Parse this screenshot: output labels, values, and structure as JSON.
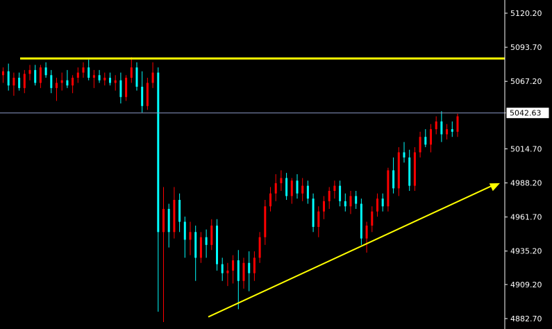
{
  "chart_data": {
    "type": "candlestick",
    "y_axis": {
      "position": "right",
      "ticks": [
        "5120.20",
        "5093.70",
        "5067.20",
        "5042.63",
        "5014.70",
        "4988.20",
        "4961.70",
        "4935.20",
        "4909.20",
        "4882.70"
      ],
      "ylim": [
        4876,
        5128
      ]
    },
    "current_price": {
      "label": "5042.63",
      "value": 5042.63
    },
    "annotations": {
      "resistance_line": {
        "price": 5085,
        "color": "#ffff00"
      },
      "trend_arrow": {
        "from_price": 4884,
        "to_price": 4988,
        "color": "#ffff00"
      }
    },
    "colors": {
      "background": "#000000",
      "bull": "#ff0000",
      "bear": "#00ffff",
      "axis": "#ffffff",
      "price_line": "#8c9ac8"
    },
    "candles": [
      [
        5072,
        5078,
        5066,
        5075
      ],
      [
        5075,
        5081,
        5060,
        5064
      ],
      [
        5064,
        5074,
        5056,
        5070
      ],
      [
        5070,
        5074,
        5060,
        5062
      ],
      [
        5062,
        5076,
        5058,
        5073
      ],
      [
        5073,
        5080,
        5068,
        5076
      ],
      [
        5076,
        5080,
        5064,
        5066
      ],
      [
        5066,
        5080,
        5062,
        5078
      ],
      [
        5078,
        5082,
        5070,
        5072
      ],
      [
        5072,
        5076,
        5058,
        5062
      ],
      [
        5062,
        5070,
        5052,
        5066
      ],
      [
        5066,
        5074,
        5060,
        5068
      ],
      [
        5068,
        5076,
        5062,
        5064
      ],
      [
        5064,
        5072,
        5058,
        5070
      ],
      [
        5070,
        5078,
        5066,
        5074
      ],
      [
        5074,
        5082,
        5070,
        5078
      ],
      [
        5078,
        5084,
        5068,
        5070
      ],
      [
        5070,
        5076,
        5062,
        5072
      ],
      [
        5072,
        5076,
        5066,
        5068
      ],
      [
        5068,
        5074,
        5064,
        5070
      ],
      [
        5070,
        5074,
        5064,
        5066
      ],
      [
        5066,
        5072,
        5060,
        5068
      ],
      [
        5068,
        5074,
        5050,
        5055
      ],
      [
        5055,
        5072,
        5052,
        5070
      ],
      [
        5070,
        5086,
        5066,
        5078
      ],
      [
        5078,
        5082,
        5060,
        5063
      ],
      [
        5063,
        5075,
        5043,
        5048
      ],
      [
        5048,
        5070,
        5045,
        5066
      ],
      [
        5066,
        5082,
        5062,
        5074
      ],
      [
        5074,
        5078,
        4888,
        4950
      ],
      [
        4950,
        4985,
        4880,
        4968
      ],
      [
        4968,
        4972,
        4938,
        4950
      ],
      [
        4950,
        4985,
        4945,
        4975
      ],
      [
        4975,
        4980,
        4950,
        4958
      ],
      [
        4958,
        4962,
        4930,
        4944
      ],
      [
        4944,
        4958,
        4932,
        4950
      ],
      [
        4950,
        4955,
        4912,
        4930
      ],
      [
        4930,
        4950,
        4926,
        4946
      ],
      [
        4946,
        4952,
        4930,
        4940
      ],
      [
        4940,
        4960,
        4936,
        4955
      ],
      [
        4955,
        4960,
        4920,
        4925
      ],
      [
        4925,
        4930,
        4912,
        4918
      ],
      [
        4918,
        4926,
        4908,
        4920
      ],
      [
        4920,
        4932,
        4910,
        4928
      ],
      [
        4928,
        4936,
        4890,
        4912
      ],
      [
        4912,
        4930,
        4906,
        4926
      ],
      [
        4926,
        4935,
        4904,
        4918
      ],
      [
        4918,
        4935,
        4912,
        4930
      ],
      [
        4930,
        4950,
        4926,
        4946
      ],
      [
        4946,
        4975,
        4940,
        4970
      ],
      [
        4970,
        4985,
        4966,
        4980
      ],
      [
        4980,
        4995,
        4974,
        4988
      ],
      [
        4988,
        4998,
        4982,
        4992
      ],
      [
        4992,
        4996,
        4975,
        4978
      ],
      [
        4978,
        4992,
        4972,
        4990
      ],
      [
        4990,
        4995,
        4976,
        4980
      ],
      [
        4980,
        4992,
        4974,
        4986
      ],
      [
        4986,
        4990,
        4972,
        4976
      ],
      [
        4976,
        4980,
        4950,
        4954
      ],
      [
        4954,
        4970,
        4946,
        4966
      ],
      [
        4966,
        4978,
        4960,
        4974
      ],
      [
        4974,
        4985,
        4968,
        4982
      ],
      [
        4982,
        4990,
        4976,
        4986
      ],
      [
        4986,
        4990,
        4970,
        4974
      ],
      [
        4974,
        4980,
        4966,
        4970
      ],
      [
        4970,
        4982,
        4964,
        4978
      ],
      [
        4978,
        4982,
        4968,
        4972
      ],
      [
        4972,
        4976,
        4940,
        4945
      ],
      [
        4945,
        4958,
        4934,
        4955
      ],
      [
        4955,
        4970,
        4950,
        4966
      ],
      [
        4966,
        4980,
        4962,
        4976
      ],
      [
        4976,
        4980,
        4966,
        4970
      ],
      [
        4970,
        5000,
        4966,
        4998
      ],
      [
        4998,
        5008,
        4980,
        4984
      ],
      [
        4984,
        5016,
        4978,
        5012
      ],
      [
        5012,
        5020,
        5004,
        5008
      ],
      [
        5008,
        5014,
        4982,
        4986
      ],
      [
        4986,
        5016,
        4982,
        5012
      ],
      [
        5012,
        5028,
        5008,
        5024
      ],
      [
        5024,
        5030,
        5016,
        5018
      ],
      [
        5018,
        5034,
        5012,
        5030
      ],
      [
        5030,
        5040,
        5026,
        5036
      ],
      [
        5036,
        5044,
        5020,
        5026
      ],
      [
        5026,
        5034,
        5022,
        5030
      ],
      [
        5030,
        5036,
        5024,
        5028
      ],
      [
        5028,
        5042,
        5024,
        5040
      ]
    ]
  }
}
